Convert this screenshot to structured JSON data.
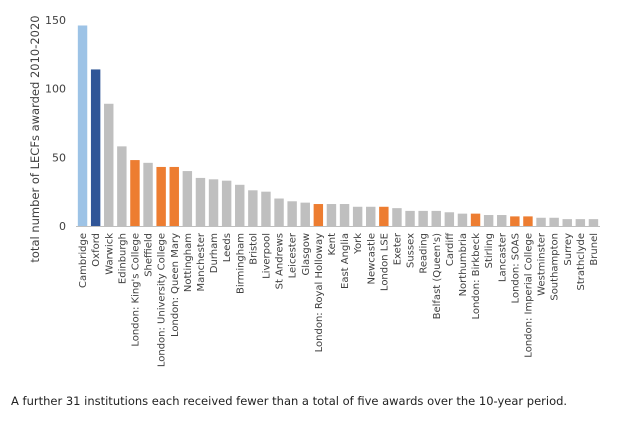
{
  "chart_data": {
    "type": "bar",
    "ylabel": "total number of LECFs awarded 2010-2020",
    "xlabel": "",
    "ylim": [
      0,
      150
    ],
    "yticks": [
      0,
      50,
      100,
      150
    ],
    "grid": false,
    "legend": "none",
    "colors": {
      "highlight_light_blue": "#9dc3e6",
      "highlight_dark_blue": "#2f5597",
      "default_grey": "#bfbfbf",
      "london_orange": "#ed7d31",
      "axis": "#bfbfbf",
      "text": "#404040"
    },
    "categories": [
      "Cambridge",
      "Oxford",
      "Warwick",
      "Edinburgh",
      "London: King's College",
      "Sheffield",
      "London: University College",
      "London: Queen Mary",
      "Nottingham",
      "Manchester",
      "Durham",
      "Leeds",
      "Birmingham",
      "Bristol",
      "Liverpool",
      "St Andrews",
      "Leicester",
      "Glasgow",
      "London: Royal Holloway",
      "Kent",
      "East Anglia",
      "York",
      "Newcastle",
      "London LSE",
      "Exeter",
      "Sussex",
      "Reading",
      "Belfast (Queen's)",
      "Cardiff",
      "Northumbria",
      "London: Birkbeck",
      "Stirling",
      "Lancaster",
      "London: SOAS",
      "London: Imperial College",
      "Westminster",
      "Southampton",
      "Surrey",
      "Strathclyde",
      "Brunel"
    ],
    "values": [
      146,
      114,
      89,
      58,
      48,
      46,
      43,
      43,
      40,
      35,
      34,
      33,
      30,
      26,
      25,
      20,
      18,
      17,
      16,
      16,
      16,
      14,
      14,
      14,
      13,
      11,
      11,
      11,
      10,
      9,
      9,
      8,
      8,
      7,
      7,
      6,
      6,
      5,
      5,
      5
    ],
    "bar_colors": [
      "highlight_light_blue",
      "highlight_dark_blue",
      "default_grey",
      "default_grey",
      "london_orange",
      "default_grey",
      "london_orange",
      "london_orange",
      "default_grey",
      "default_grey",
      "default_grey",
      "default_grey",
      "default_grey",
      "default_grey",
      "default_grey",
      "default_grey",
      "default_grey",
      "default_grey",
      "london_orange",
      "default_grey",
      "default_grey",
      "default_grey",
      "default_grey",
      "london_orange",
      "default_grey",
      "default_grey",
      "default_grey",
      "default_grey",
      "default_grey",
      "default_grey",
      "london_orange",
      "default_grey",
      "default_grey",
      "london_orange",
      "london_orange",
      "default_grey",
      "default_grey",
      "default_grey",
      "default_grey",
      "default_grey"
    ]
  },
  "caption": "A further 31 institutions each received fewer than a total of five awards over the 10-year period."
}
